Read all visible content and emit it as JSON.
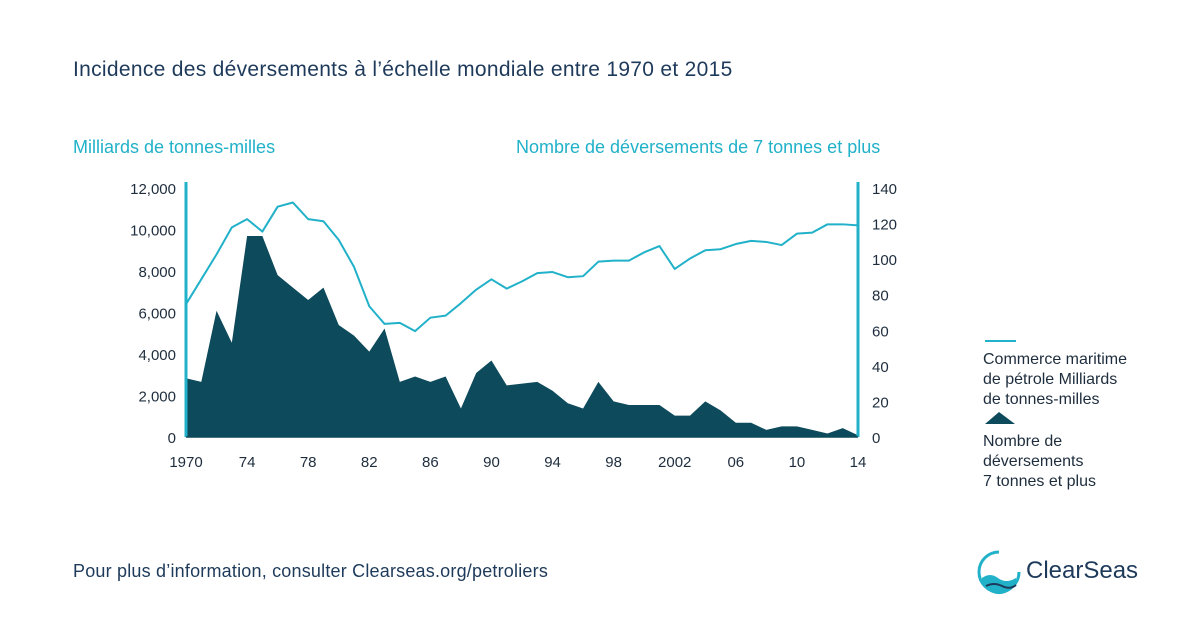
{
  "header": {
    "title": "Incidence des déversements à l’échelle mondiale entre 1970 et 2015"
  },
  "footer": {
    "text": "Pour plus d’information, consulter Clearseas.org/petroliers"
  },
  "logo": {
    "text": "ClearSeas"
  },
  "legend": {
    "line_label": "Commerce maritime\nde pétrole Milliards\nde tonnes-milles",
    "area_label": "Nombre de\ndéversements\n7 tonnes et plus"
  },
  "colors": {
    "line": "#21b1c9",
    "area": "#0d4a5b",
    "axis": "#21b1c9",
    "text": "#1e2d3d",
    "title": "#1e3a5a"
  },
  "chart_data": {
    "type": "area",
    "left_axis": {
      "title": "Milliards de tonnes-milles",
      "range": [
        0,
        12000
      ],
      "ticks": [
        0,
        2000,
        4000,
        6000,
        8000,
        10000,
        12000
      ],
      "tick_labels": [
        "0",
        "2,000",
        "4,000",
        "6,000",
        "8,000",
        "10,000",
        "12,000"
      ]
    },
    "right_axis": {
      "title": "Nombre de déversements de 7 tonnes et plus",
      "range": [
        0,
        140
      ],
      "ticks": [
        0,
        20,
        40,
        60,
        80,
        100,
        120,
        140
      ],
      "tick_labels": [
        "0",
        "20",
        "40",
        "60",
        "80",
        "100",
        "120",
        "140"
      ]
    },
    "x_axis": {
      "range": [
        1970,
        2014
      ],
      "ticks": [
        1970,
        1974,
        1978,
        1982,
        1986,
        1990,
        1994,
        1998,
        2002,
        2006,
        2010,
        2014
      ],
      "tick_labels": [
        "1970",
        "74",
        "78",
        "82",
        "86",
        "90",
        "94",
        "98",
        "2002",
        "06",
        "10",
        "14"
      ]
    },
    "x": [
      1970,
      1971,
      1972,
      1973,
      1974,
      1975,
      1976,
      1977,
      1978,
      1979,
      1980,
      1981,
      1982,
      1983,
      1984,
      1985,
      1986,
      1987,
      1988,
      1989,
      1990,
      1991,
      1992,
      1993,
      1994,
      1995,
      1996,
      1997,
      1998,
      1999,
      2000,
      2001,
      2002,
      2003,
      2004,
      2005,
      2006,
      2007,
      2008,
      2009,
      2010,
      2011,
      2012,
      2013,
      2014
    ],
    "series": [
      {
        "name": "Commerce maritime de pétrole Milliards de tonnes-milles",
        "axis": "left",
        "kind": "line",
        "values": [
          6400,
          7600,
          8800,
          10100,
          10500,
          9900,
          11100,
          11300,
          10500,
          10400,
          9500,
          8200,
          6300,
          5450,
          5500,
          5100,
          5750,
          5850,
          6450,
          7100,
          7600,
          7150,
          7500,
          7900,
          7950,
          7700,
          7750,
          8450,
          8500,
          8500,
          8900,
          9200,
          8100,
          8600,
          9000,
          9050,
          9300,
          9450,
          9400,
          9250,
          9800,
          9850,
          10250,
          10250,
          10200
        ]
      },
      {
        "name": "Nombre de déversements 7 tonnes et plus",
        "axis": "right",
        "kind": "area",
        "values": [
          33,
          31,
          71,
          53,
          113,
          113,
          91,
          84,
          77,
          84,
          63,
          57,
          48,
          61,
          31,
          34,
          31,
          34,
          16,
          36,
          43,
          29,
          30,
          31,
          26,
          19,
          16,
          31,
          20,
          18,
          18,
          18,
          12,
          12,
          20,
          15,
          8,
          8,
          4,
          6,
          6,
          4,
          2,
          5,
          1
        ]
      }
    ]
  }
}
